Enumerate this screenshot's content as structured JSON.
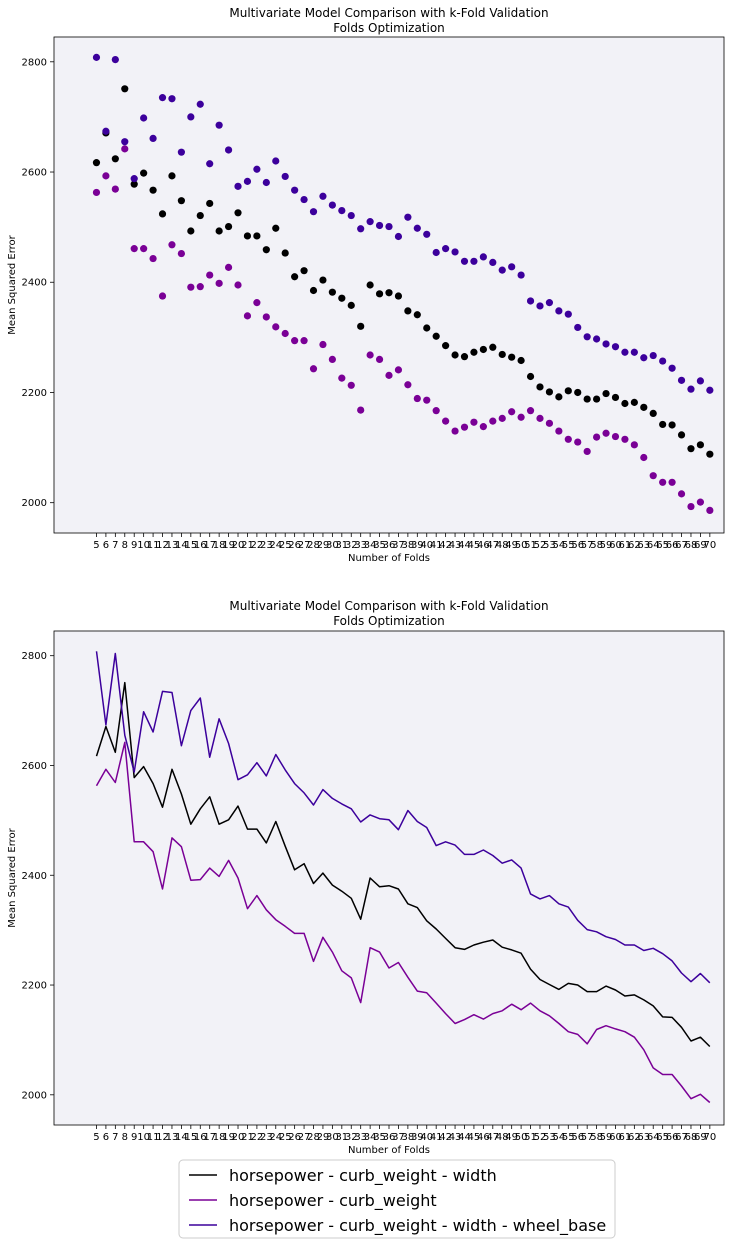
{
  "colors": {
    "background": "#ffffff",
    "axes_face": "#f2f2f7",
    "s1": "#000000",
    "s2": "#7a0096",
    "s3": "#3c009c"
  },
  "legend": {
    "placement": "bottom-center",
    "entries": [
      "horsepower - curb_weight - width",
      "horsepower - curb_weight",
      "horsepower - curb_weight - width - wheel_base"
    ]
  },
  "chart_data": [
    {
      "type": "scatter",
      "title": "Multivariate Model Comparison with k-Fold Validation",
      "subtitle": "Folds Optimization",
      "xlabel": "Number of Folds",
      "ylabel": "Mean Squared Error",
      "ylim": [
        1945,
        2845
      ],
      "yticks": [
        2000,
        2200,
        2400,
        2600,
        2800
      ],
      "grid": false,
      "x": [
        5,
        6,
        7,
        8,
        9,
        10,
        11,
        12,
        13,
        14,
        15,
        16,
        17,
        18,
        19,
        20,
        21,
        22,
        23,
        24,
        25,
        26,
        27,
        28,
        29,
        30,
        31,
        32,
        33,
        34,
        35,
        36,
        37,
        38,
        39,
        40,
        41,
        42,
        43,
        44,
        45,
        46,
        47,
        48,
        49,
        50,
        51,
        52,
        53,
        54,
        55,
        56,
        57,
        58,
        59,
        60,
        61,
        62,
        63,
        64,
        65,
        66,
        67,
        68,
        69,
        70
      ],
      "series": [
        {
          "name": "horsepower - curb_weight - width",
          "color": "#000000",
          "values": [
            2617,
            2671,
            2624,
            2751,
            2578,
            2598,
            2567,
            2524,
            2593,
            2548,
            2493,
            2521,
            2543,
            2493,
            2501,
            2526,
            2484,
            2484,
            2459,
            2498,
            2453,
            2410,
            2421,
            2385,
            2404,
            2382,
            2371,
            2358,
            2320,
            2395,
            2379,
            2381,
            2375,
            2348,
            2341,
            2317,
            2302,
            2285,
            2268,
            2265,
            2273,
            2278,
            2282,
            2269,
            2264,
            2258,
            2229,
            2210,
            2201,
            2192,
            2203,
            2200,
            2188,
            2188,
            2198,
            2191,
            2180,
            2182,
            2173,
            2162,
            2142,
            2141,
            2123,
            2098,
            2105,
            2088
          ]
        },
        {
          "name": "horsepower - curb_weight",
          "color": "#7a0096",
          "values": [
            2563,
            2593,
            2569,
            2642,
            2461,
            2461,
            2443,
            2375,
            2468,
            2452,
            2391,
            2392,
            2413,
            2398,
            2427,
            2395,
            2339,
            2363,
            2337,
            2319,
            2307,
            2294,
            2294,
            2243,
            2287,
            2260,
            2226,
            2213,
            2168,
            2268,
            2260,
            2231,
            2241,
            2214,
            2189,
            2186,
            2167,
            2148,
            2130,
            2137,
            2146,
            2138,
            2148,
            2153,
            2165,
            2155,
            2167,
            2153,
            2144,
            2130,
            2115,
            2110,
            2093,
            2119,
            2126,
            2120,
            2115,
            2105,
            2082,
            2049,
            2037,
            2037,
            2016,
            1993,
            2001,
            1986
          ]
        },
        {
          "name": "horsepower - curb_weight - width - wheel_base",
          "color": "#3c009c",
          "values": [
            2808,
            2674,
            2804,
            2655,
            2588,
            2698,
            2661,
            2735,
            2733,
            2636,
            2700,
            2723,
            2615,
            2685,
            2640,
            2574,
            2583,
            2605,
            2581,
            2620,
            2592,
            2567,
            2550,
            2528,
            2556,
            2540,
            2530,
            2521,
            2497,
            2510,
            2503,
            2501,
            2483,
            2518,
            2498,
            2487,
            2454,
            2461,
            2455,
            2438,
            2438,
            2446,
            2436,
            2422,
            2428,
            2413,
            2366,
            2357,
            2363,
            2348,
            2342,
            2318,
            2301,
            2297,
            2288,
            2283,
            2273,
            2273,
            2263,
            2267,
            2257,
            2244,
            2222,
            2206,
            2221,
            2204
          ]
        }
      ]
    },
    {
      "type": "line",
      "title": "Multivariate Model Comparison with k-Fold Validation",
      "subtitle": "Folds Optimization",
      "xlabel": "Number of Folds",
      "ylabel": "Mean Squared Error",
      "ylim": [
        1945,
        2845
      ],
      "yticks": [
        2000,
        2200,
        2400,
        2600,
        2800
      ],
      "grid": false,
      "series_same_as": "chart 1"
    }
  ]
}
